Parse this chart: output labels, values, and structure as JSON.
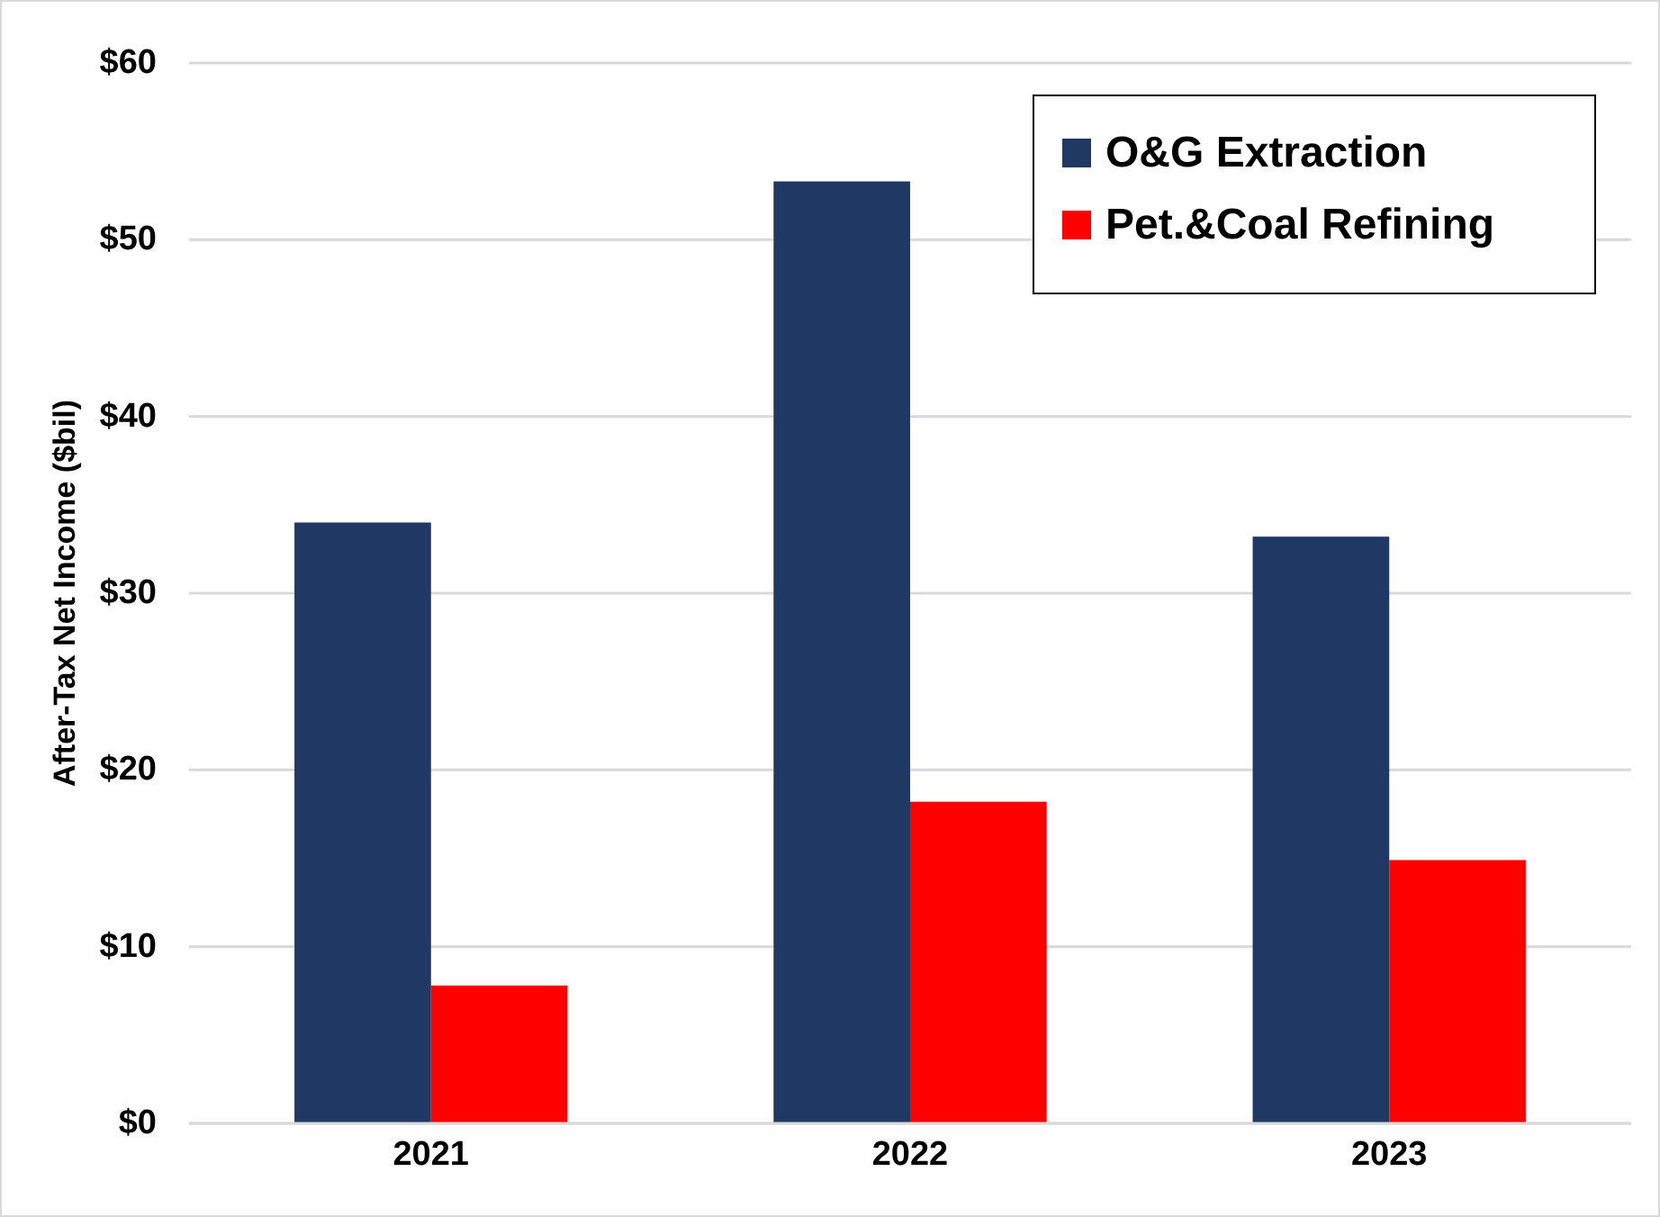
{
  "chart_data": {
    "type": "bar",
    "ylabel": "After-Tax Net Income ($bil)",
    "categories": [
      "2021",
      "2022",
      "2023"
    ],
    "series": [
      {
        "name": "O&G Extraction",
        "color": "#1f3864",
        "values": [
          34.0,
          53.3,
          33.2
        ]
      },
      {
        "name": "Pet.&Coal Refining",
        "color": "#ff0000",
        "values": [
          7.8,
          18.2,
          14.9
        ]
      }
    ],
    "ylim": [
      0,
      60
    ],
    "yticks": [
      {
        "value": 0,
        "label": "$0"
      },
      {
        "value": 10,
        "label": "$10"
      },
      {
        "value": 20,
        "label": "$20"
      },
      {
        "value": 30,
        "label": "$30"
      },
      {
        "value": 40,
        "label": "$40"
      },
      {
        "value": 50,
        "label": "$50"
      },
      {
        "value": 60,
        "label": "$60"
      }
    ],
    "grid": "y",
    "legend": "top right"
  }
}
